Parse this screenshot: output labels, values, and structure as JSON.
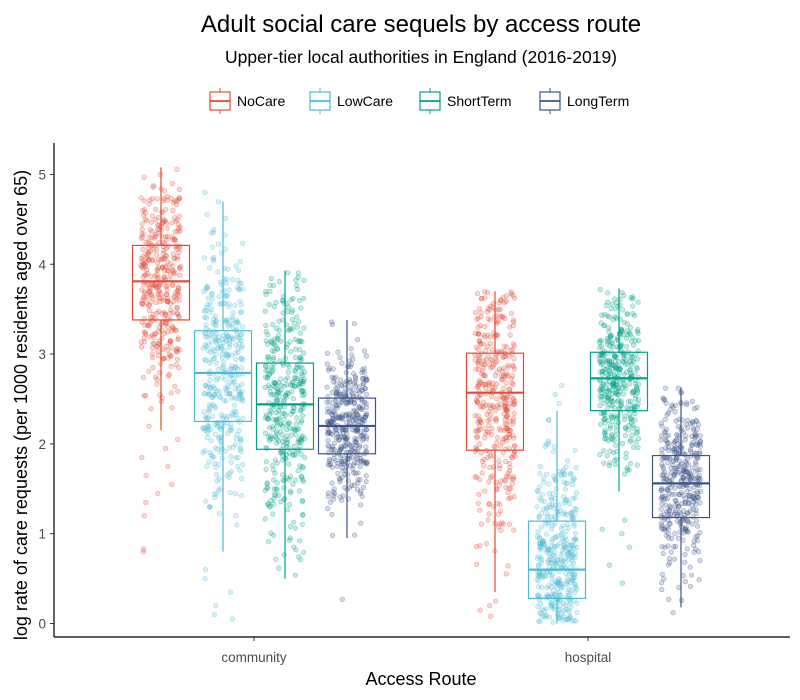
{
  "chart_data": {
    "type": "boxplot",
    "title": "Adult social care sequels by access route",
    "subtitle": "Upper-tier local authorities in England (2016-2019)",
    "xlabel": "Access Route",
    "ylabel": "log rate of care requests (per 1000 residents aged over 65)",
    "categories": [
      "community",
      "hospital"
    ],
    "ylim": [
      -0.15,
      5.35
    ],
    "yticks": [
      "0",
      "1",
      "2",
      "3",
      "4",
      "5"
    ],
    "grid": false,
    "legend_position": "top",
    "series": [
      {
        "name": "NoCare",
        "color": "#E24B35",
        "boxes": [
          {
            "category": "community",
            "min": 2.15,
            "q1": 3.38,
            "median": 3.81,
            "q3": 4.21,
            "max": 5.08,
            "outliers": [
              0.8,
              0.83,
              1.2,
              1.35,
              1.45,
              1.55,
              1.65,
              1.75,
              1.85,
              1.95,
              2.05
            ]
          },
          {
            "category": "hospital",
            "min": 0.35,
            "q1": 1.93,
            "median": 2.57,
            "q3": 3.01,
            "max": 3.7,
            "outliers": [
              0.08,
              0.15,
              0.2,
              0.25
            ]
          }
        ]
      },
      {
        "name": "LowCare",
        "color": "#4DBBD5",
        "boxes": [
          {
            "category": "community",
            "min": 0.8,
            "q1": 2.25,
            "median": 2.79,
            "q3": 3.26,
            "max": 4.7,
            "outliers": [
              0.05,
              0.1,
              0.2,
              0.35,
              0.5,
              0.6,
              4.8
            ]
          },
          {
            "category": "hospital",
            "min": 0.0,
            "q1": 0.28,
            "median": 0.6,
            "q3": 1.14,
            "max": 2.37,
            "outliers": [
              2.45,
              2.55,
              2.65
            ]
          }
        ]
      },
      {
        "name": "ShortTerm",
        "color": "#00A087",
        "boxes": [
          {
            "category": "community",
            "min": 0.5,
            "q1": 1.94,
            "median": 2.44,
            "q3": 2.9,
            "max": 3.93,
            "outliers": []
          },
          {
            "category": "hospital",
            "min": 1.47,
            "q1": 2.37,
            "median": 2.73,
            "q3": 3.02,
            "max": 3.73,
            "outliers": [
              0.45,
              0.65,
              0.85,
              1.0,
              1.05,
              1.15
            ]
          }
        ]
      },
      {
        "name": "LongTerm",
        "color": "#3C5488",
        "boxes": [
          {
            "category": "community",
            "min": 0.95,
            "q1": 1.89,
            "median": 2.2,
            "q3": 2.51,
            "max": 3.38,
            "outliers": [
              0.27
            ]
          },
          {
            "category": "hospital",
            "min": 0.18,
            "q1": 1.18,
            "median": 1.56,
            "q3": 1.87,
            "max": 2.63,
            "outliers": [
              0.12
            ]
          }
        ]
      }
    ]
  }
}
